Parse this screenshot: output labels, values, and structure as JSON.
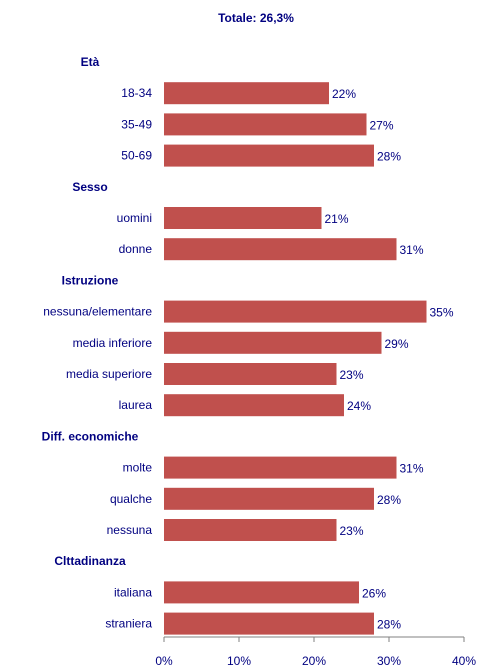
{
  "chart_data": {
    "type": "bar",
    "orientation": "horizontal",
    "title": "Totale: 26,3%",
    "xlim": [
      0,
      40
    ],
    "x_ticks": [
      "0%",
      "10%",
      "20%",
      "30%",
      "40%"
    ],
    "bar_color": "#c0504d",
    "text_color": "#000080",
    "groups": [
      {
        "label": "Età",
        "items": [
          {
            "category": "18-34",
            "value": 22,
            "label": "22%"
          },
          {
            "category": "35-49",
            "value": 27,
            "label": "27%"
          },
          {
            "category": "50-69",
            "value": 28,
            "label": "28%"
          }
        ]
      },
      {
        "label": "Sesso",
        "items": [
          {
            "category": "uomini",
            "value": 21,
            "label": "21%"
          },
          {
            "category": "donne",
            "value": 31,
            "label": "31%"
          }
        ]
      },
      {
        "label": "Istruzione",
        "items": [
          {
            "category": "nessuna/elementare",
            "value": 35,
            "label": "35%"
          },
          {
            "category": "media inferiore",
            "value": 29,
            "label": "29%"
          },
          {
            "category": "media superiore",
            "value": 23,
            "label": "23%"
          },
          {
            "category": "laurea",
            "value": 24,
            "label": "24%"
          }
        ]
      },
      {
        "label": "Diff. economiche",
        "items": [
          {
            "category": "molte",
            "value": 31,
            "label": "31%"
          },
          {
            "category": "qualche",
            "value": 28,
            "label": "28%"
          },
          {
            "category": "nessuna",
            "value": 23,
            "label": "23%"
          }
        ]
      },
      {
        "label": "Clttadinanza",
        "items": [
          {
            "category": "italiana",
            "value": 26,
            "label": "26%"
          },
          {
            "category": "straniera",
            "value": 28,
            "label": "28%"
          }
        ]
      }
    ]
  }
}
